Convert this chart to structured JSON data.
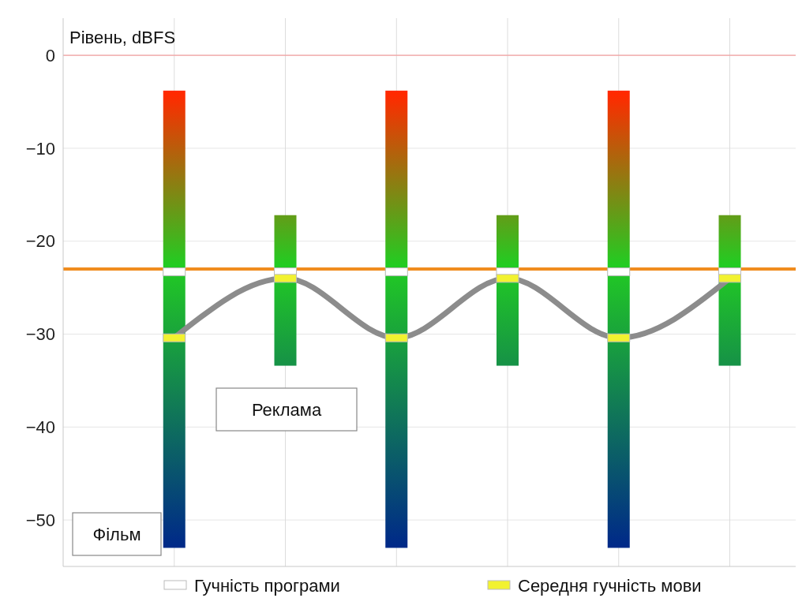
{
  "chart_data": {
    "type": "bar",
    "ylabel": "Рівень, dBFS",
    "categories": [
      null,
      null,
      null,
      null,
      null,
      null
    ],
    "ylim": [
      -55,
      4
    ],
    "yticks": [
      0,
      -10,
      -20,
      -30,
      -40,
      -50
    ],
    "grid": true,
    "legend": "bottom",
    "series": [
      {
        "type": "bar",
        "color": "#22cc22",
        "base": [
          -53,
          -33.4,
          -53,
          -33.4,
          -53,
          -33.4
        ],
        "values": [
          49.2,
          16.2,
          49.2,
          16.2,
          49.2,
          16.2
        ]
      },
      {
        "type": "line",
        "color": "#8c8c8c",
        "values": [
          -30.4,
          -24,
          -30.4,
          -24,
          -30.4,
          -24
        ],
        "marker": "none"
      },
      {
        "type": "scatter",
        "name": "Гучність програми",
        "color": "#ffffff",
        "marker": "square",
        "values": [
          -23.3,
          -23.3,
          -23.3,
          -23.3,
          -23.3,
          -23.3
        ]
      },
      {
        "type": "scatter",
        "name": "Середня гучність мови",
        "color": "#f2f230",
        "marker": "square",
        "values": [
          -30.4,
          -24,
          -30.4,
          -24,
          -30.4,
          -24
        ]
      }
    ],
    "ref_lines": [
      {
        "axis": "y",
        "value": 0,
        "color": "#f4a0a0"
      },
      {
        "axis": "y",
        "value": -23,
        "color": "#f08c1e"
      }
    ],
    "annotations": [
      "Фільм",
      "Реклама"
    ]
  }
}
